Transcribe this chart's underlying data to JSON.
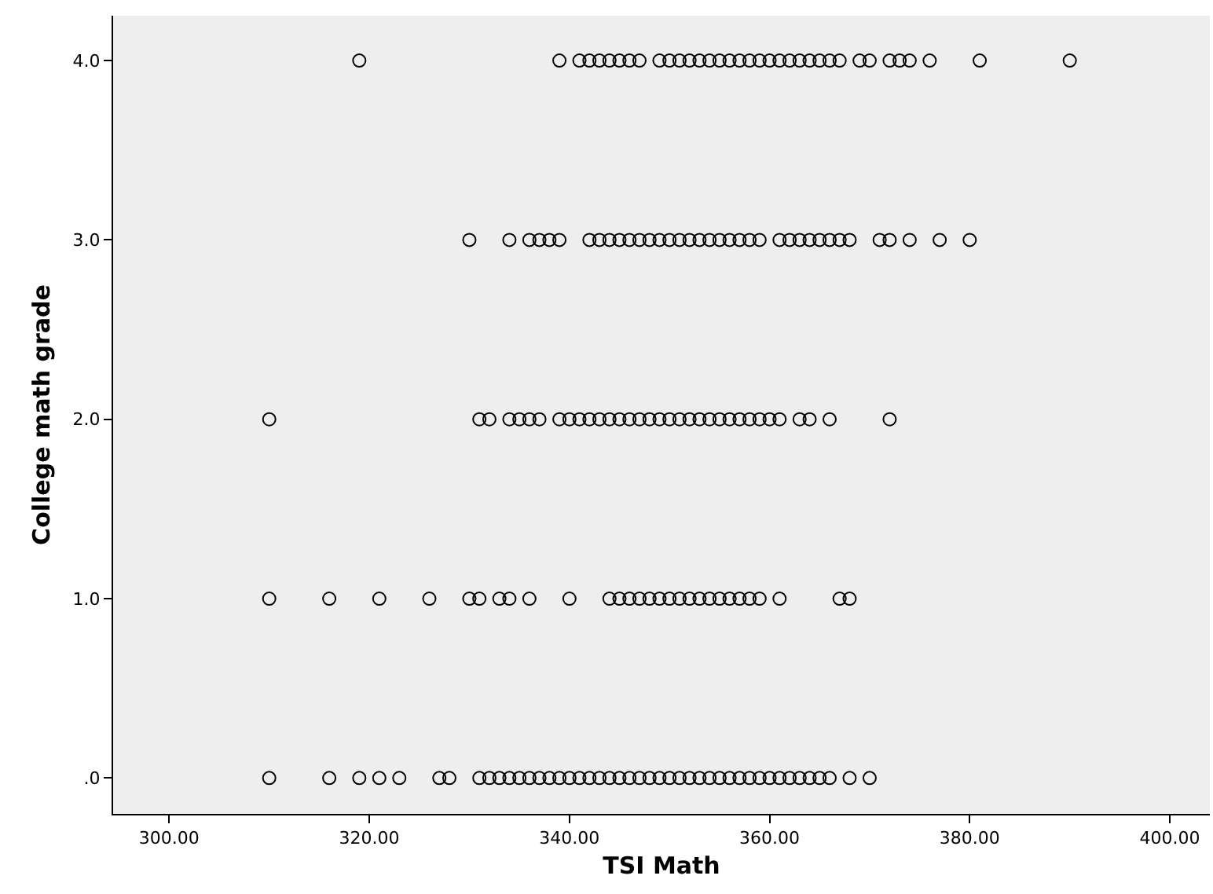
{
  "chart_data": {
    "type": "scatter",
    "xlabel": "TSI Math",
    "ylabel": "College math grade",
    "marker": "circle",
    "grid": false,
    "xlim": [
      294.4,
      404
    ],
    "ylim": [
      -0.2,
      4.25
    ],
    "xticks": [
      {
        "value": 300,
        "label": "300.00"
      },
      {
        "value": 320,
        "label": "320.00"
      },
      {
        "value": 340,
        "label": "340.00"
      },
      {
        "value": 360,
        "label": "360.00"
      },
      {
        "value": 380,
        "label": "380.00"
      },
      {
        "value": 400,
        "label": "400.00"
      }
    ],
    "yticks": [
      {
        "value": 0,
        "label": ".0"
      },
      {
        "value": 1,
        "label": "1.0"
      },
      {
        "value": 2,
        "label": "2.0"
      },
      {
        "value": 3,
        "label": "3.0"
      },
      {
        "value": 4,
        "label": "4.0"
      }
    ],
    "series": [
      {
        "color": "#000000",
        "x": [
          319,
          339,
          341,
          342,
          343,
          344,
          345,
          346,
          347,
          349,
          350,
          351,
          352,
          353,
          354,
          355,
          356,
          357,
          358,
          359,
          360,
          361,
          362,
          363,
          364,
          365,
          366,
          367,
          369,
          370,
          372,
          373,
          374,
          376,
          381,
          390
        ],
        "values": [
          4,
          4,
          4,
          4,
          4,
          4,
          4,
          4,
          4,
          4,
          4,
          4,
          4,
          4,
          4,
          4,
          4,
          4,
          4,
          4,
          4,
          4,
          4,
          4,
          4,
          4,
          4,
          4,
          4,
          4,
          4,
          4,
          4,
          4,
          4,
          4
        ]
      },
      {
        "color": "#000000",
        "x": [
          330,
          334,
          336,
          337,
          338,
          339,
          342,
          343,
          344,
          345,
          346,
          347,
          348,
          349,
          350,
          351,
          352,
          353,
          354,
          355,
          356,
          357,
          358,
          359,
          361,
          362,
          363,
          364,
          365,
          366,
          367,
          368,
          371,
          372,
          374,
          377,
          380
        ],
        "values": [
          3,
          3,
          3,
          3,
          3,
          3,
          3,
          3,
          3,
          3,
          3,
          3,
          3,
          3,
          3,
          3,
          3,
          3,
          3,
          3,
          3,
          3,
          3,
          3,
          3,
          3,
          3,
          3,
          3,
          3,
          3,
          3,
          3,
          3,
          3,
          3,
          3
        ]
      },
      {
        "color": "#000000",
        "x": [
          310,
          331,
          332,
          334,
          335,
          336,
          337,
          339,
          340,
          341,
          342,
          343,
          344,
          345,
          346,
          347,
          348,
          349,
          350,
          351,
          352,
          353,
          354,
          355,
          356,
          357,
          358,
          359,
          360,
          361,
          363,
          364,
          366,
          372
        ],
        "values": [
          2,
          2,
          2,
          2,
          2,
          2,
          2,
          2,
          2,
          2,
          2,
          2,
          2,
          2,
          2,
          2,
          2,
          2,
          2,
          2,
          2,
          2,
          2,
          2,
          2,
          2,
          2,
          2,
          2,
          2,
          2,
          2,
          2,
          2
        ]
      },
      {
        "color": "#000000",
        "x": [
          310,
          316,
          321,
          326,
          330,
          331,
          333,
          334,
          336,
          340,
          344,
          345,
          346,
          347,
          348,
          349,
          350,
          351,
          352,
          353,
          354,
          355,
          356,
          357,
          358,
          359,
          361,
          367,
          368
        ],
        "values": [
          1,
          1,
          1,
          1,
          1,
          1,
          1,
          1,
          1,
          1,
          1,
          1,
          1,
          1,
          1,
          1,
          1,
          1,
          1,
          1,
          1,
          1,
          1,
          1,
          1,
          1,
          1,
          1,
          1
        ]
      },
      {
        "color": "#000000",
        "x": [
          310,
          316,
          319,
          321,
          323,
          327,
          328,
          331,
          332,
          333,
          334,
          335,
          336,
          337,
          338,
          339,
          340,
          341,
          342,
          343,
          344,
          345,
          346,
          347,
          348,
          349,
          350,
          351,
          352,
          353,
          354,
          355,
          356,
          357,
          358,
          359,
          360,
          361,
          362,
          363,
          364,
          365,
          366,
          368,
          370
        ],
        "values": [
          0,
          0,
          0,
          0,
          0,
          0,
          0,
          0,
          0,
          0,
          0,
          0,
          0,
          0,
          0,
          0,
          0,
          0,
          0,
          0,
          0,
          0,
          0,
          0,
          0,
          0,
          0,
          0,
          0,
          0,
          0,
          0,
          0,
          0,
          0,
          0,
          0,
          0,
          0,
          0,
          0,
          0,
          0,
          0,
          0
        ]
      }
    ]
  }
}
